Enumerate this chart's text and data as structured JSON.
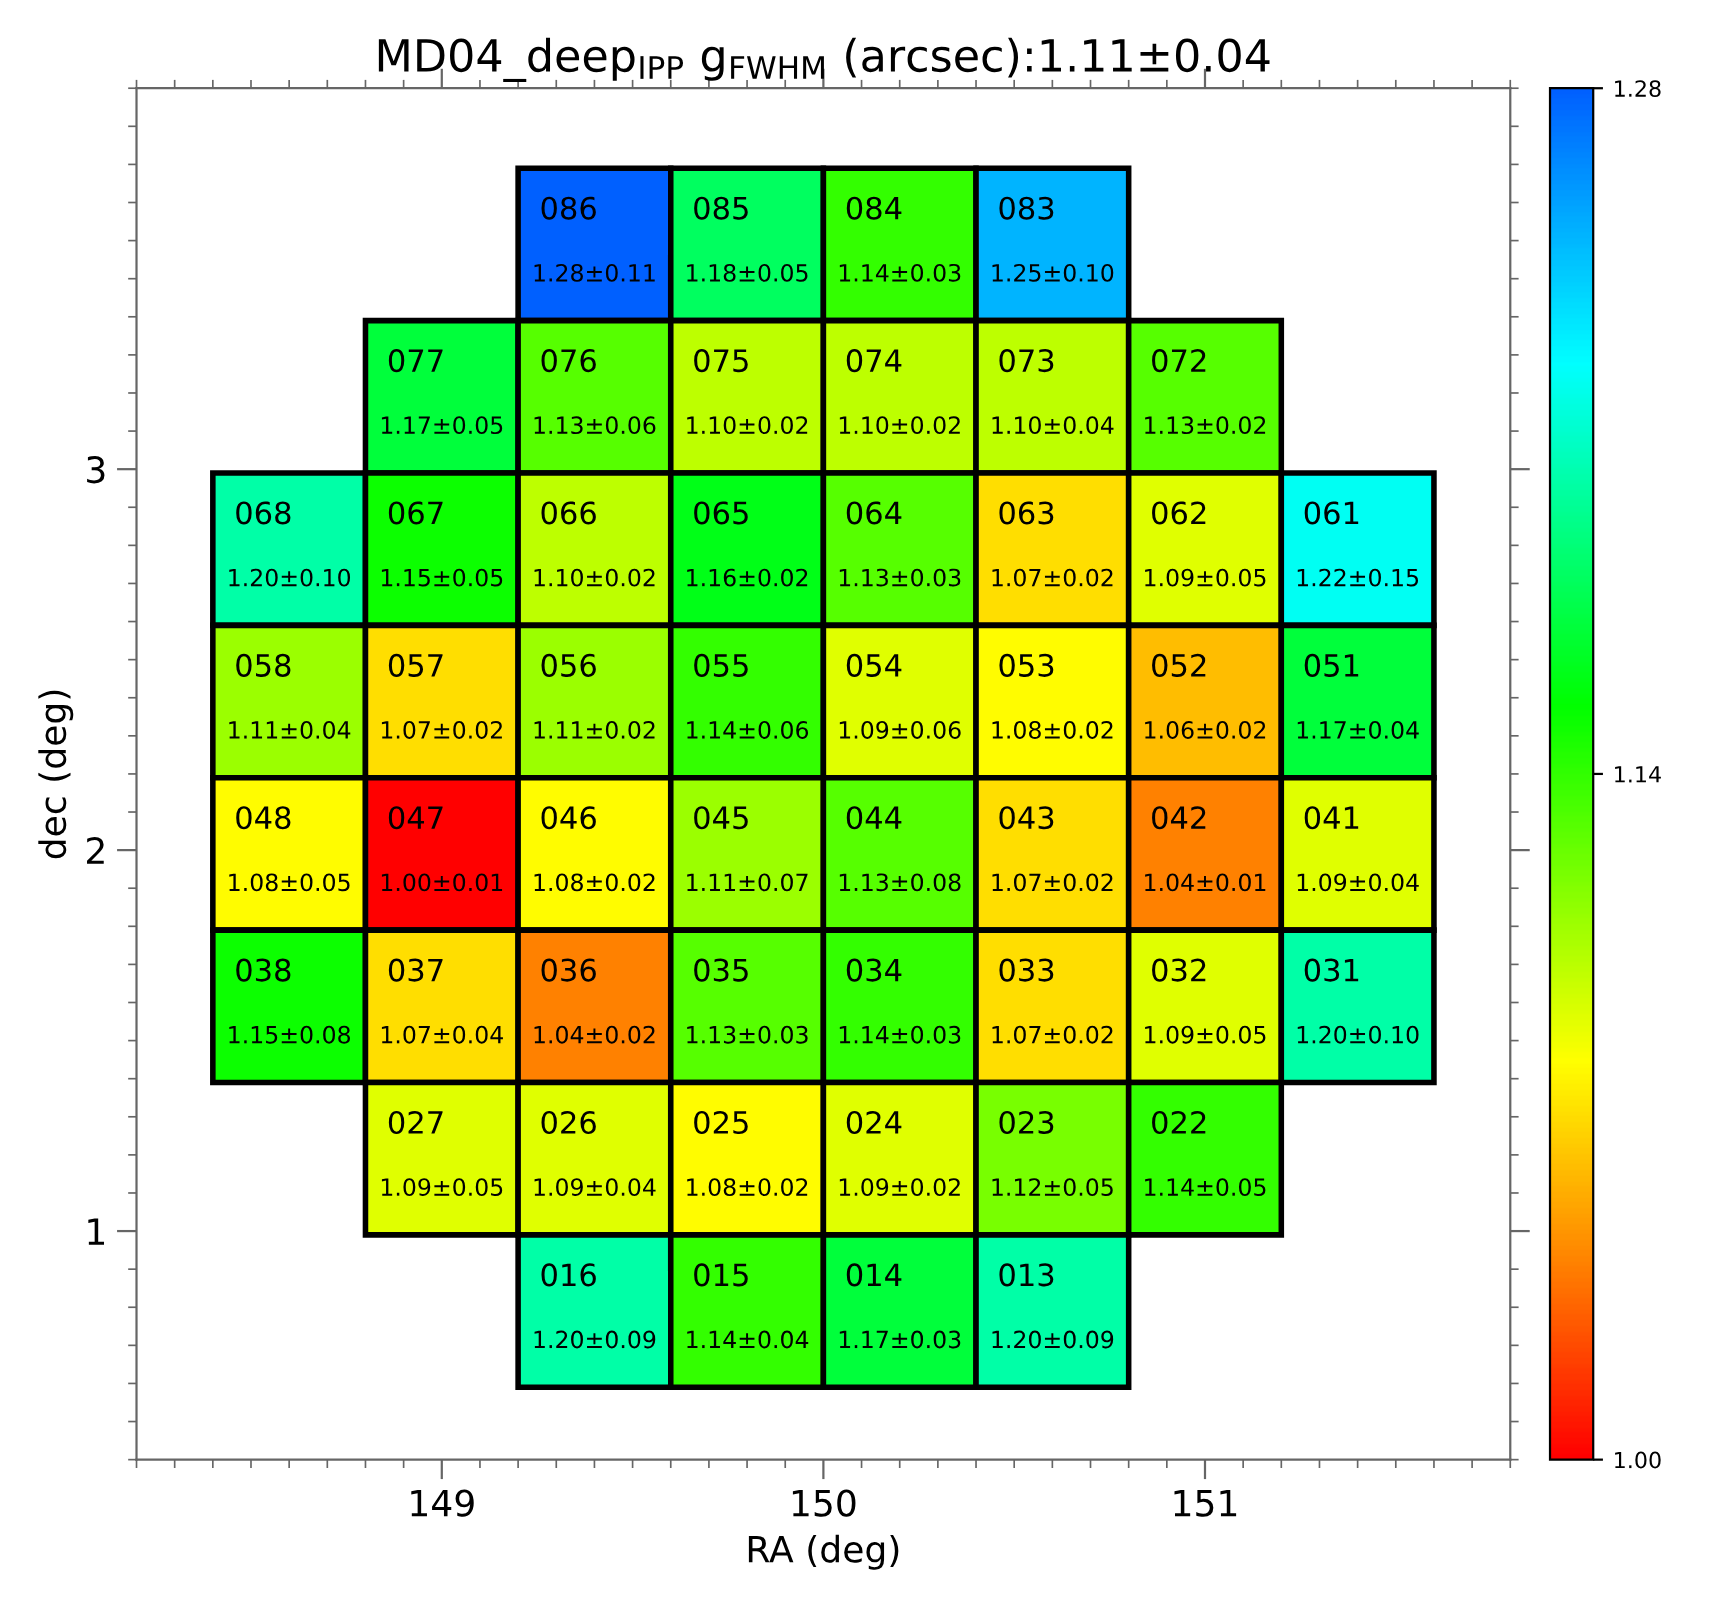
{
  "chart_data": {
    "type": "heatmap",
    "title": "MD04_deep$_{IPP}$ g$_{FWHM}$ (arcsec):1.11±0.04",
    "xlabel": "RA (deg)",
    "ylabel": "dec (deg)",
    "x": [
      148.6,
      149.0,
      149.4,
      149.8,
      150.2,
      150.6,
      151.0,
      151.4
    ],
    "y": [
      3.59,
      3.19,
      2.79,
      2.39,
      1.99,
      1.59,
      1.19,
      0.79
    ],
    "xlim": [
      148.2,
      151.8
    ],
    "xticks": [
      149,
      150,
      151
    ],
    "ylim": [
      0.4,
      4.0
    ],
    "yticks": [
      1,
      2,
      3
    ],
    "clim": [
      1.0,
      1.28
    ],
    "cticks": [
      {
        "value": 1.0,
        "label": "1.00"
      },
      1.14,
      1.28
    ],
    "cells": [
      [
        null,
        null,
        1.28,
        1.18,
        1.14,
        1.25,
        null,
        null
      ],
      [
        null,
        1.17,
        1.13,
        1.1,
        1.1,
        1.1,
        1.13,
        null
      ],
      [
        1.2,
        1.15,
        1.1,
        1.16,
        1.13,
        1.07,
        1.09,
        1.22
      ],
      [
        1.11,
        1.07,
        1.11,
        1.14,
        1.09,
        1.08,
        1.06,
        1.17
      ],
      [
        1.08,
        1.0,
        1.08,
        1.11,
        1.13,
        1.07,
        1.04,
        1.09
      ],
      [
        1.15,
        1.07,
        1.04,
        1.13,
        1.14,
        1.07,
        1.09,
        1.2
      ],
      [
        null,
        1.09,
        1.09,
        1.08,
        1.09,
        1.12,
        1.14,
        null
      ],
      [
        null,
        null,
        1.2,
        1.14,
        1.17,
        1.2,
        null,
        null
      ]
    ],
    "cell_labels": [
      [
        null,
        null,
        "086\n1.28±0.11",
        "085\n1.18±0.05",
        "084\n1.14±0.03",
        "083\n1.25±0.10",
        null,
        null
      ],
      [
        null,
        "077\n1.17±0.05",
        "076\n1.13±0.06",
        "075\n1.10±0.02",
        "074\n1.10±0.02",
        "073\n1.10±0.04",
        "072\n1.13±0.02",
        null
      ],
      [
        "068\n1.20±0.10",
        "067\n1.15±0.05",
        "066\n1.10±0.02",
        "065\n1.16±0.02",
        "064\n1.13±0.03",
        "063\n1.07±0.02",
        "062\n1.09±0.05",
        "061\n1.22±0.15"
      ],
      [
        "058\n1.11±0.04",
        "057\n1.07±0.02",
        "056\n1.11±0.02",
        "055\n1.14±0.06",
        "054\n1.09±0.06",
        "053\n1.08±0.02",
        "052\n1.06±0.02",
        "051\n1.17±0.04"
      ],
      [
        "048\n1.08±0.05",
        "047\n1.00±0.01",
        "046\n1.08±0.02",
        "045\n1.11±0.07",
        "044\n1.13±0.08",
        "043\n1.07±0.02",
        "042\n1.04±0.01",
        "041\n1.09±0.04"
      ],
      [
        "038\n1.15±0.08",
        "037\n1.07±0.04",
        "036\n1.04±0.02",
        "035\n1.13±0.03",
        "034\n1.14±0.03",
        "033\n1.07±0.02",
        "032\n1.09±0.05",
        "031\n1.20±0.10"
      ],
      [
        null,
        "027\n1.09±0.05",
        "026\n1.09±0.04",
        "025\n1.08±0.02",
        "024\n1.09±0.02",
        "023\n1.12±0.05",
        "022\n1.14±0.05",
        null
      ],
      [
        null,
        null,
        "016\n1.20±0.09",
        "015\n1.14±0.04",
        "014\n1.17±0.03",
        "013\n1.20±0.09",
        null,
        null
      ]
    ]
  }
}
